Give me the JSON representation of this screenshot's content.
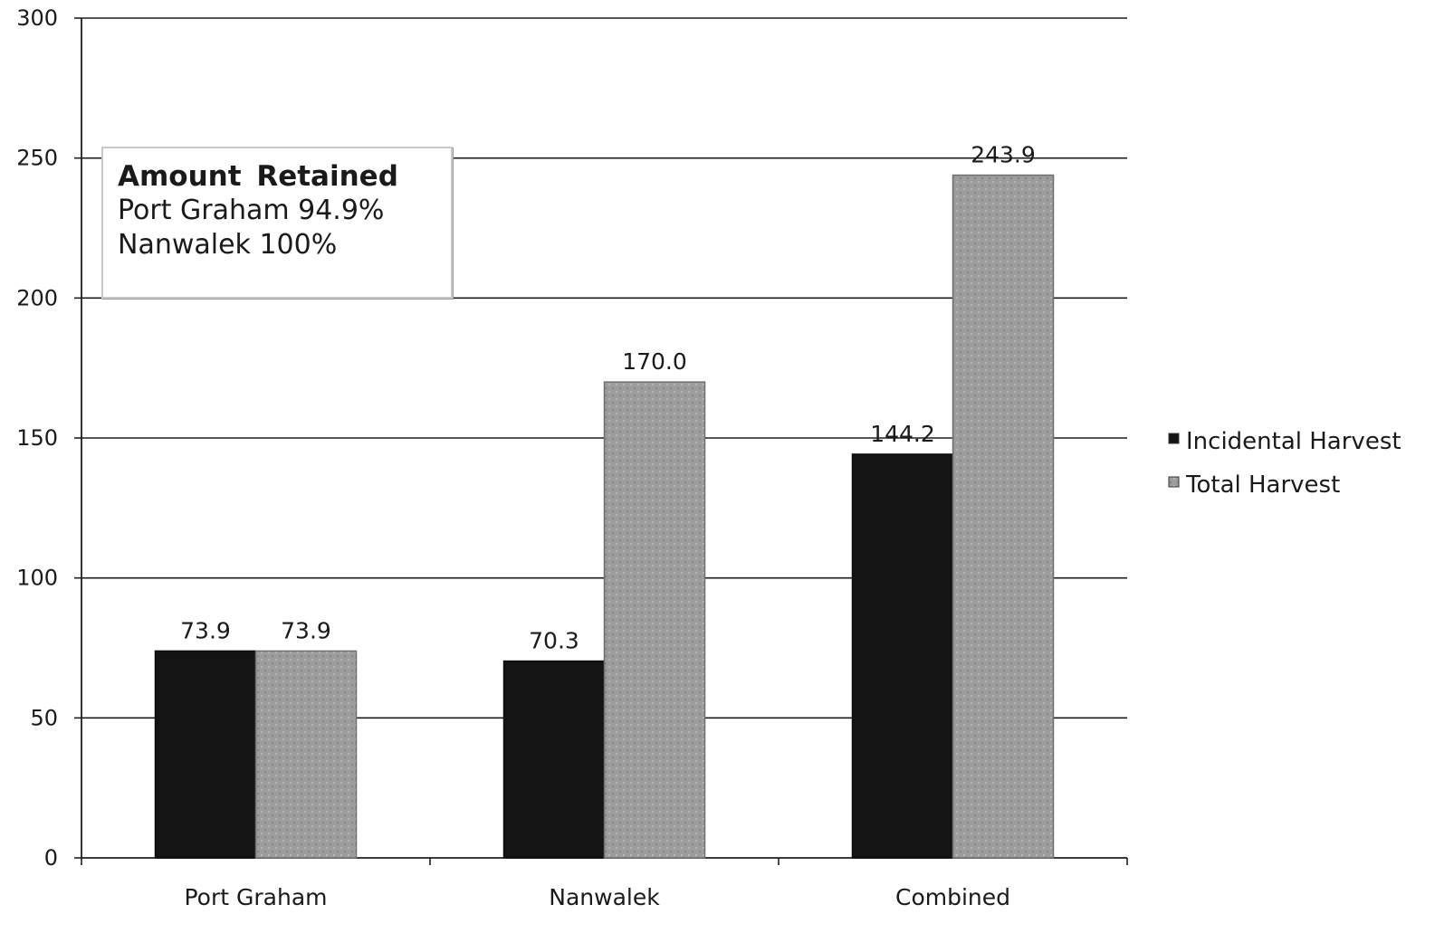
{
  "chart_data": {
    "type": "bar",
    "title": "",
    "xlabel": "",
    "ylabel": "",
    "categories": [
      "Port Graham",
      "Nanwalek",
      "Combined"
    ],
    "series": [
      {
        "name": "Incidental Harvest",
        "values": [
          73.9,
          70.3,
          144.2
        ],
        "color": "#141414"
      },
      {
        "name": "Total Harvest",
        "values": [
          73.9,
          170.0,
          243.9
        ],
        "color": "#9c9c9c"
      }
    ],
    "data_labels": [
      [
        "73.9",
        "70.3",
        "144.2"
      ],
      [
        "73.9",
        "170.0",
        "243.9"
      ]
    ],
    "ylim": [
      0,
      300
    ],
    "yticks": [
      0,
      50,
      100,
      150,
      200,
      250,
      300
    ],
    "grid": true,
    "legend_position": "right",
    "annotation": {
      "title": "Amount  Retained",
      "lines": [
        "Port Graham 94.9%",
        "Nanwalek 100%"
      ]
    }
  }
}
